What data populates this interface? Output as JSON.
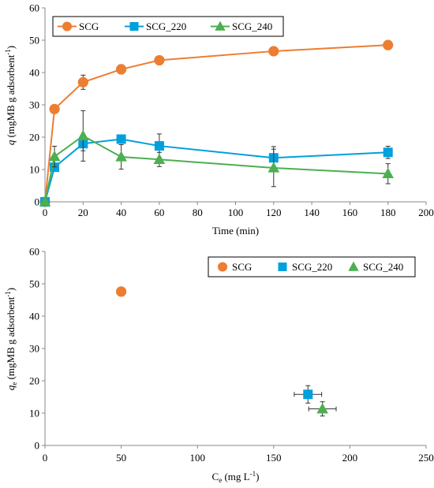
{
  "chart_data": [
    {
      "type": "line",
      "xlabel": "Time (min)",
      "ylabel_italic": "q",
      "ylabel_rest": " (mgMB g adsorbent",
      "ylabel_sup": "-1",
      "ylabel_close": ")",
      "xlim": [
        0,
        200
      ],
      "ylim": [
        0,
        60
      ],
      "xticks": [
        0,
        20,
        40,
        60,
        80,
        100,
        120,
        140,
        160,
        180,
        200
      ],
      "yticks": [
        0,
        10,
        20,
        30,
        40,
        50,
        60
      ],
      "grid": false,
      "legend_position": "top-left",
      "series": [
        {
          "name": "SCG",
          "color": "#ED7D31",
          "marker": "circle",
          "x": [
            0,
            5,
            20,
            40,
            60,
            120,
            180
          ],
          "y": [
            0,
            28.7,
            37.0,
            41.0,
            43.8,
            46.6,
            48.5
          ],
          "err": [
            0,
            0.8,
            2.2,
            1.4,
            1.3,
            0.7,
            0.6
          ]
        },
        {
          "name": "SCG_220",
          "color": "#00A0DC",
          "marker": "square",
          "x": [
            0,
            5,
            20,
            40,
            60,
            120,
            180
          ],
          "y": [
            0,
            10.7,
            18.0,
            19.4,
            17.3,
            13.6,
            15.3
          ],
          "err": [
            0,
            0.8,
            2.2,
            0.8,
            3.7,
            3.5,
            1.9
          ]
        },
        {
          "name": "SCG_240",
          "color": "#4CAF50",
          "marker": "triangle",
          "x": [
            0,
            5,
            20,
            40,
            60,
            120,
            180
          ],
          "y": [
            0,
            14.0,
            20.4,
            13.9,
            13.1,
            10.5,
            8.7
          ],
          "err": [
            0,
            3.2,
            7.8,
            3.8,
            2.2,
            5.8,
            3.1
          ]
        }
      ]
    },
    {
      "type": "scatter",
      "xlabel_main": "C",
      "xlabel_sub": "e",
      "xlabel_rest": " (mg L",
      "xlabel_sup": "-1",
      "xlabel_close": ")",
      "ylabel_italic": "q",
      "ylabel_sub": "e",
      "ylabel_rest": " (mgMB g adsorbent",
      "ylabel_sup": "-1",
      "ylabel_close": ")",
      "xlim": [
        0,
        250
      ],
      "ylim": [
        0,
        60
      ],
      "xticks": [
        0,
        50,
        100,
        150,
        200,
        250
      ],
      "yticks": [
        0,
        10,
        20,
        30,
        40,
        50,
        60
      ],
      "grid": false,
      "legend_position": "top-right",
      "series": [
        {
          "name": "SCG",
          "color": "#ED7D31",
          "marker": "circle",
          "x": [
            50
          ],
          "y": [
            47.6
          ],
          "xerr": [
            2
          ],
          "yerr": [
            0.5
          ]
        },
        {
          "name": "SCG_220",
          "color": "#00A0DC",
          "marker": "square",
          "x": [
            172.5
          ],
          "y": [
            15.8
          ],
          "xerr": [
            9
          ],
          "yerr": [
            2.7
          ]
        },
        {
          "name": "SCG_240",
          "color": "#4CAF50",
          "marker": "triangle",
          "x": [
            182
          ],
          "y": [
            11.3
          ],
          "xerr": [
            9
          ],
          "yerr": [
            2.2
          ]
        }
      ]
    }
  ]
}
